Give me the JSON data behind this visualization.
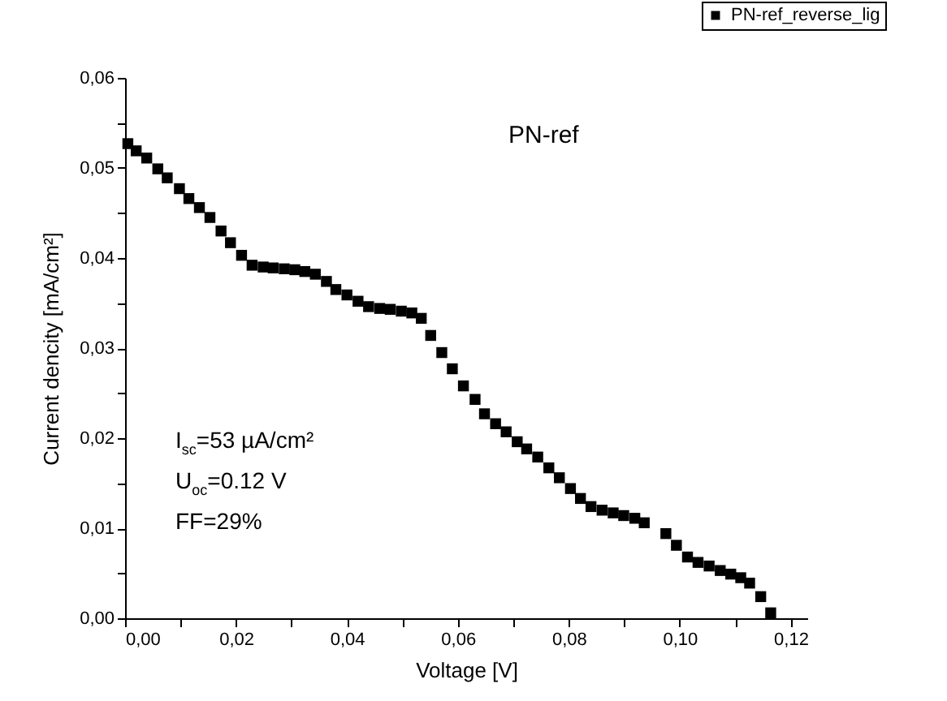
{
  "chart_data": {
    "type": "scatter",
    "xlabel": "Voltage [V]",
    "ylabel": "Current dencity [mA/cm²]",
    "annotations": [
      "PN-ref",
      "I$_{sc}$=53 µA/cm²",
      "U$_{oc}$=0.12 V",
      "FF=29%"
    ],
    "xlim": [
      0,
      0.123
    ],
    "ylim": [
      0,
      0.06
    ],
    "xticks": [
      {
        "value": 0,
        "label": "0,00"
      },
      {
        "value": 0.01,
        "label": null
      },
      {
        "value": 0.02,
        "label": "0,02"
      },
      {
        "value": 0.03,
        "label": null
      },
      {
        "value": 0.04,
        "label": "0,04"
      },
      {
        "value": 0.05,
        "label": null
      },
      {
        "value": 0.06,
        "label": "0,06"
      },
      {
        "value": 0.07,
        "label": null
      },
      {
        "value": 0.08,
        "label": "0,08"
      },
      {
        "value": 0.09,
        "label": null
      },
      {
        "value": 0.1,
        "label": "0,10"
      },
      {
        "value": 0.11,
        "label": null
      },
      {
        "value": 0.12,
        "label": "0,12"
      }
    ],
    "yticks": [
      {
        "value": 0,
        "label": "0,00"
      },
      {
        "value": 0.005,
        "label": null
      },
      {
        "value": 0.01,
        "label": "0,01"
      },
      {
        "value": 0.015,
        "label": null
      },
      {
        "value": 0.02,
        "label": "0,02"
      },
      {
        "value": 0.025,
        "label": null
      },
      {
        "value": 0.03,
        "label": "0,03"
      },
      {
        "value": 0.035,
        "label": null
      },
      {
        "value": 0.04,
        "label": "0,04"
      },
      {
        "value": 0.045,
        "label": null
      },
      {
        "value": 0.05,
        "label": "0,05"
      },
      {
        "value": 0.055,
        "label": null
      },
      {
        "value": 0.06,
        "label": "0,06"
      }
    ],
    "legend": "top right",
    "marker": "square",
    "grid": false,
    "series": [
      {
        "name": "PN-ref_reverse_lig",
        "color": "#000000",
        "x": [
          0.0005,
          0.002,
          0.0039,
          0.0059,
          0.0076,
          0.0098,
          0.0115,
          0.0134,
          0.0153,
          0.0173,
          0.019,
          0.021,
          0.0229,
          0.0249,
          0.0267,
          0.0287,
          0.0306,
          0.0324,
          0.0343,
          0.0363,
          0.038,
          0.04,
          0.042,
          0.0439,
          0.0459,
          0.0478,
          0.0498,
          0.0517,
          0.0534,
          0.0551,
          0.0571,
          0.059,
          0.061,
          0.0631,
          0.0648,
          0.0668,
          0.0687,
          0.0707,
          0.0724,
          0.0744,
          0.0764,
          0.0783,
          0.0803,
          0.0821,
          0.084,
          0.086,
          0.088,
          0.0899,
          0.0919,
          0.0936,
          0.0975,
          0.0994,
          0.1014,
          0.1033,
          0.1053,
          0.1073,
          0.1092,
          0.111,
          0.1126,
          0.1146,
          0.1164
        ],
        "values": [
          0.0527,
          0.0519,
          0.0511,
          0.0499,
          0.0489,
          0.0477,
          0.0466,
          0.0456,
          0.0445,
          0.043,
          0.0417,
          0.0403,
          0.0392,
          0.039,
          0.0389,
          0.0388,
          0.0387,
          0.0385,
          0.0382,
          0.0374,
          0.0365,
          0.0359,
          0.0352,
          0.0346,
          0.0344,
          0.0343,
          0.0341,
          0.0339,
          0.0333,
          0.0314,
          0.0295,
          0.0277,
          0.0258,
          0.0243,
          0.0227,
          0.0216,
          0.0207,
          0.0196,
          0.0188,
          0.0179,
          0.0167,
          0.0156,
          0.0144,
          0.0133,
          0.0124,
          0.012,
          0.0117,
          0.0114,
          0.0111,
          0.0106,
          0.0094,
          0.0081,
          0.0068,
          0.0062,
          0.0058,
          0.0053,
          0.0049,
          0.0045,
          0.0039,
          0.0024,
          0.0006
        ]
      }
    ]
  }
}
